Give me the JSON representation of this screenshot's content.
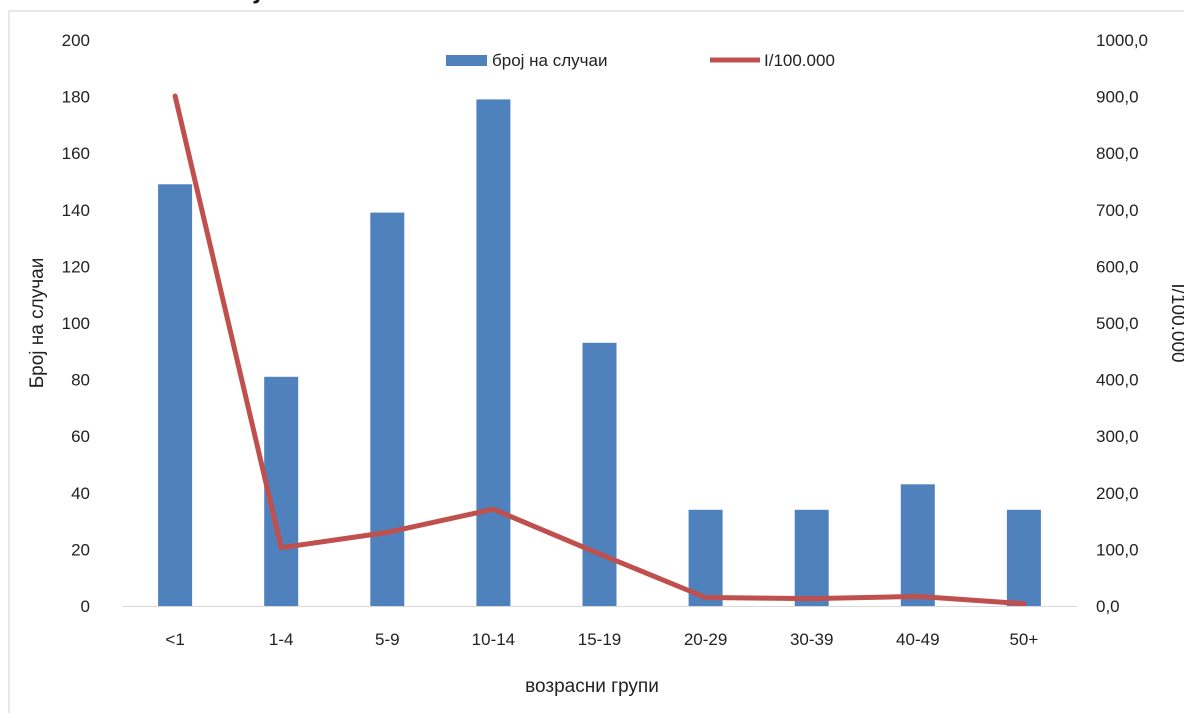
{
  "header_fragment": "j",
  "chart_data": {
    "type": "bar",
    "categories": [
      "<1",
      "1-4",
      "5-9",
      "10-14",
      "15-19",
      "20-29",
      "30-39",
      "40-49",
      "50+"
    ],
    "series": [
      {
        "name": "број на случаи",
        "type": "bar",
        "axis": "left",
        "color": "#4F81BD",
        "values": [
          149,
          81,
          139,
          179,
          93,
          34,
          34,
          43,
          34
        ]
      },
      {
        "name": "I/100.000",
        "type": "line",
        "axis": "right",
        "color": "#C0504D",
        "values": [
          901,
          103,
          130,
          171,
          92,
          15,
          13,
          17,
          4
        ]
      }
    ],
    "xlabel": "возрасни групи",
    "ylabel": "Број на случаи",
    "y2label": "I/100.000",
    "ylim": [
      0,
      200
    ],
    "y2lim": [
      0,
      1000
    ],
    "yticks": [
      "0",
      "20",
      "40",
      "60",
      "80",
      "100",
      "120",
      "140",
      "160",
      "180",
      "200"
    ],
    "y2ticks": [
      "0,0",
      "100,0",
      "200,0",
      "300,0",
      "400,0",
      "500,0",
      "600,0",
      "700,0",
      "800,0",
      "900,0",
      "1000,0"
    ],
    "grid": false,
    "legend": "top"
  }
}
